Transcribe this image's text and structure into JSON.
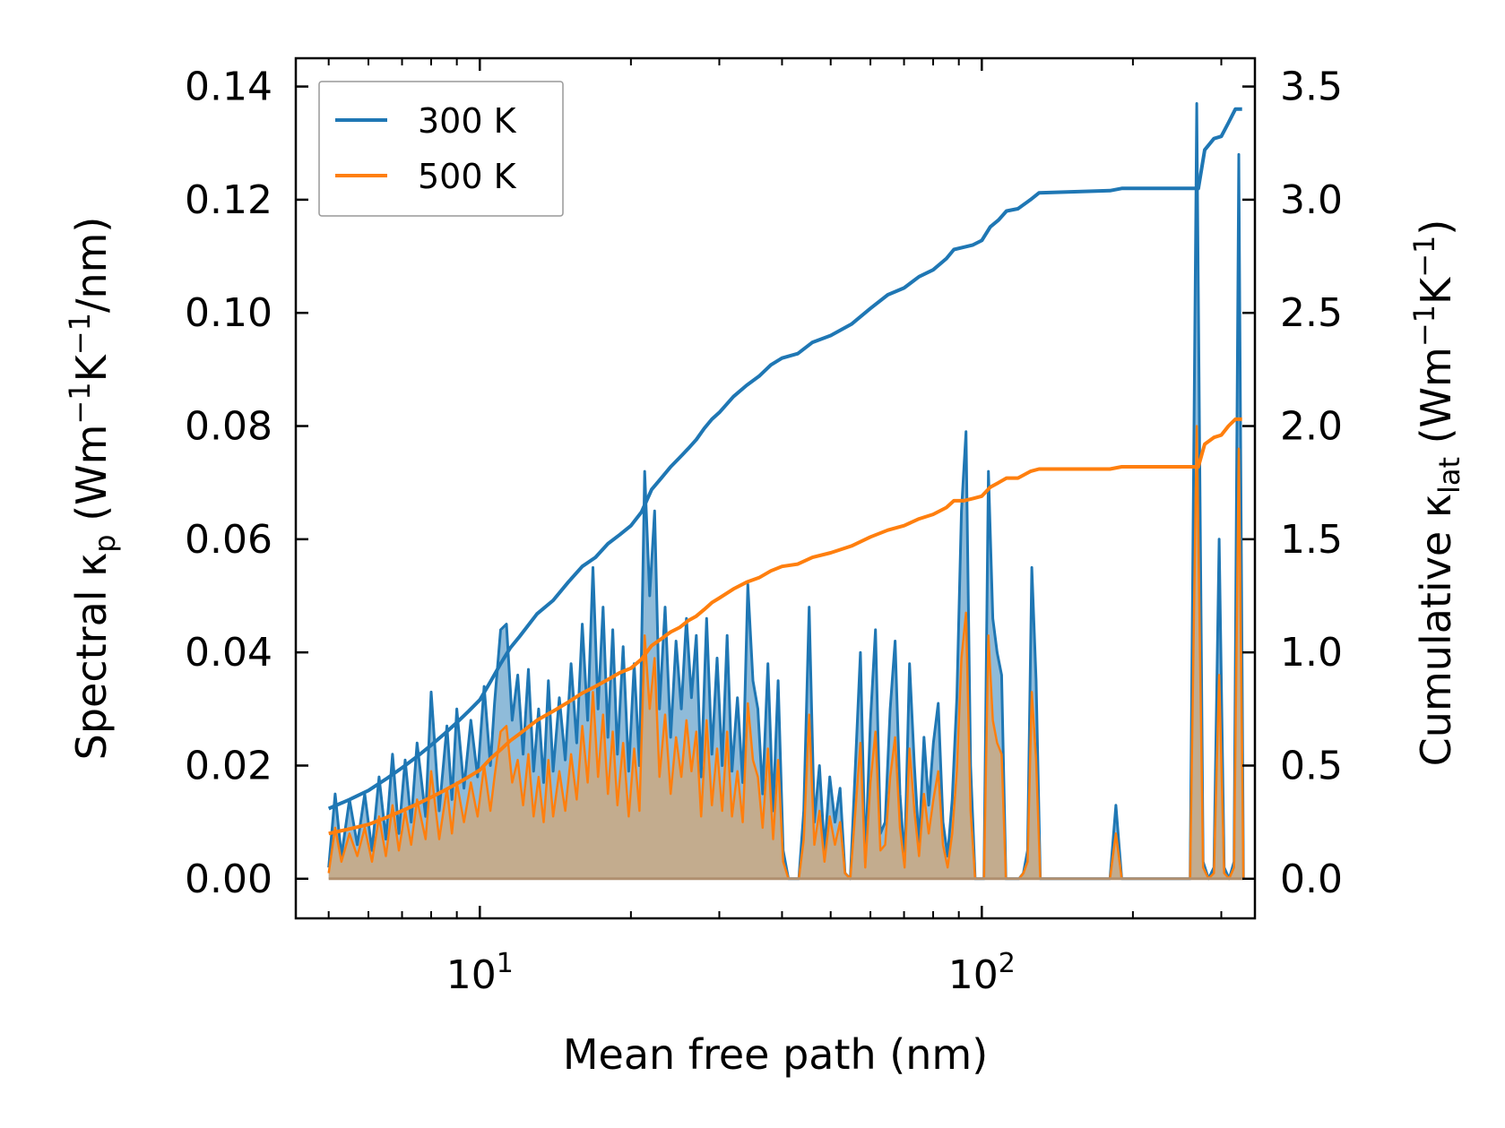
{
  "chart_data": {
    "type": "line",
    "xscale": "log",
    "xlabel": "Mean free path (nm)",
    "ylabel_left": {
      "prefix": "Spectral κ",
      "sub": "p",
      "unit_open": " (Wm",
      "sup1": "−1",
      "mid": "K",
      "sup2": "−1",
      "unit_close": "/nm)"
    },
    "ylabel_right": {
      "prefix": "Cumulative κ",
      "sub": "lat",
      "unit_open": " (Wm",
      "sup1": "−1",
      "mid": "K",
      "sup2": "−1",
      "unit_close": ")"
    },
    "xlim": [
      4.3,
      350
    ],
    "ylim_left": [
      -0.007,
      0.145
    ],
    "ylim_right": [
      -0.175,
      3.625
    ],
    "x_ticks": [
      {
        "base": "10",
        "exp": "1",
        "value": 10
      },
      {
        "base": "10",
        "exp": "2",
        "value": 100
      }
    ],
    "y_ticks_left": [
      "0.00",
      "0.02",
      "0.04",
      "0.06",
      "0.08",
      "0.10",
      "0.12",
      "0.14"
    ],
    "y_ticks_right": [
      "0.0",
      "0.5",
      "1.0",
      "1.5",
      "2.0",
      "2.5",
      "3.0",
      "3.5"
    ],
    "legend": {
      "position": "top-left",
      "entries": [
        {
          "label": "300 K",
          "color": "#1f77b4"
        },
        {
          "label": "500 K",
          "color": "#ff7f0e"
        }
      ]
    },
    "colors": {
      "blue": "#1f77b4",
      "orange": "#ff7f0e",
      "blue_fill": "#1f77b4",
      "orange_fill": "#d9a56e"
    },
    "spectral_300K": {
      "x": [
        5.0,
        5.15,
        5.3,
        5.5,
        5.7,
        5.9,
        6.1,
        6.3,
        6.5,
        6.7,
        6.9,
        7.1,
        7.3,
        7.5,
        7.8,
        8.0,
        8.3,
        8.6,
        8.8,
        9.0,
        9.3,
        9.6,
        9.9,
        10.2,
        10.5,
        10.7,
        11.0,
        11.3,
        11.6,
        11.9,
        12.2,
        12.5,
        12.8,
        13.1,
        13.4,
        13.7,
        14.0,
        14.4,
        14.8,
        15.2,
        15.6,
        16.0,
        16.4,
        16.8,
        17.2,
        17.6,
        18.0,
        18.4,
        18.8,
        19.3,
        19.8,
        20.3,
        20.8,
        21.3,
        21.8,
        22.3,
        22.8,
        23.4,
        24.0,
        24.6,
        25.2,
        25.8,
        26.4,
        27.0,
        27.6,
        28.3,
        29.0,
        29.7,
        30.4,
        31.1,
        31.8,
        32.6,
        33.4,
        34.2,
        35.0,
        35.8,
        36.6,
        37.5,
        38.4,
        39.3,
        40.2,
        41.2,
        42.2,
        43.2,
        44.2,
        45.3,
        46.4,
        47.5,
        48.6,
        49.8,
        51.0,
        52.2,
        53.4,
        54.7,
        56.0,
        57.3,
        58.6,
        60.0,
        61.4,
        62.8,
        64.2,
        65.7,
        67.2,
        68.7,
        70.2,
        71.8,
        73.4,
        75.0,
        76.7,
        78.4,
        80.1,
        81.9,
        83.7,
        85.5,
        87.3,
        89.2,
        91.1,
        93.0,
        95.0,
        97.0,
        99.0,
        101.0,
        103.1,
        105.2,
        107.3,
        109.5,
        111.7,
        114.0,
        116.3,
        118.6,
        121.0,
        123.4,
        125.8,
        128.3,
        130.8,
        133.3,
        140,
        180,
        185,
        190,
        195,
        260,
        268,
        276,
        283,
        290,
        297,
        304,
        311,
        318,
        325,
        332
      ],
      "y": [
        0.002,
        0.015,
        0.004,
        0.014,
        0.006,
        0.015,
        0.005,
        0.018,
        0.007,
        0.022,
        0.008,
        0.021,
        0.01,
        0.024,
        0.011,
        0.033,
        0.012,
        0.027,
        0.014,
        0.03,
        0.016,
        0.028,
        0.018,
        0.034,
        0.02,
        0.031,
        0.044,
        0.045,
        0.028,
        0.036,
        0.022,
        0.037,
        0.019,
        0.03,
        0.017,
        0.035,
        0.019,
        0.032,
        0.021,
        0.038,
        0.024,
        0.045,
        0.028,
        0.055,
        0.03,
        0.048,
        0.025,
        0.044,
        0.022,
        0.041,
        0.019,
        0.038,
        0.02,
        0.072,
        0.05,
        0.065,
        0.03,
        0.048,
        0.025,
        0.042,
        0.03,
        0.046,
        0.032,
        0.043,
        0.018,
        0.046,
        0.022,
        0.039,
        0.02,
        0.043,
        0.019,
        0.032,
        0.017,
        0.052,
        0.035,
        0.03,
        0.015,
        0.038,
        0.012,
        0.035,
        0.005,
        0.0,
        0.0,
        0.0,
        0.012,
        0.048,
        0.01,
        0.02,
        0.005,
        0.018,
        0.01,
        0.016,
        0.001,
        0.0,
        0.02,
        0.04,
        0.003,
        0.028,
        0.044,
        0.008,
        0.01,
        0.03,
        0.042,
        0.015,
        0.003,
        0.038,
        0.02,
        0.006,
        0.025,
        0.013,
        0.024,
        0.031,
        0.01,
        0.004,
        0.014,
        0.032,
        0.065,
        0.079,
        0.02,
        0.0,
        0.0,
        0.0,
        0.072,
        0.046,
        0.04,
        0.036,
        0.0,
        0.0,
        0.0,
        0.0,
        0.001,
        0.005,
        0.055,
        0.035,
        0.0,
        0.0,
        0.0,
        0.0,
        0.013,
        0.0,
        0.0,
        0.0,
        0.137,
        0.003,
        0.0,
        0.002,
        0.06,
        0.002,
        0.0,
        0.003,
        0.128,
        0.0
      ],
      "fill_opacity": 0.5
    },
    "spectral_500K": {
      "x": [
        5.0,
        5.15,
        5.3,
        5.5,
        5.7,
        5.9,
        6.1,
        6.3,
        6.5,
        6.7,
        6.9,
        7.1,
        7.3,
        7.5,
        7.8,
        8.0,
        8.3,
        8.6,
        8.8,
        9.0,
        9.3,
        9.6,
        9.9,
        10.2,
        10.5,
        10.7,
        11.0,
        11.3,
        11.6,
        11.9,
        12.2,
        12.5,
        12.8,
        13.1,
        13.4,
        13.7,
        14.0,
        14.4,
        14.8,
        15.2,
        15.6,
        16.0,
        16.4,
        16.8,
        17.2,
        17.6,
        18.0,
        18.4,
        18.8,
        19.3,
        19.8,
        20.3,
        20.8,
        21.3,
        21.8,
        22.3,
        22.8,
        23.4,
        24.0,
        24.6,
        25.2,
        25.8,
        26.4,
        27.0,
        27.6,
        28.3,
        29.0,
        29.7,
        30.4,
        31.1,
        31.8,
        32.6,
        33.4,
        34.2,
        35.0,
        35.8,
        36.6,
        37.5,
        38.4,
        39.3,
        40.2,
        41.2,
        42.2,
        43.2,
        44.2,
        45.3,
        46.4,
        47.5,
        48.6,
        49.8,
        51.0,
        52.2,
        53.4,
        54.7,
        56.0,
        57.3,
        58.6,
        60.0,
        61.4,
        62.8,
        64.2,
        65.7,
        67.2,
        68.7,
        70.2,
        71.8,
        73.4,
        75.0,
        76.7,
        78.4,
        80.1,
        81.9,
        83.7,
        85.5,
        87.3,
        89.2,
        91.1,
        93.0,
        95.0,
        97.0,
        99.0,
        101.0,
        103.1,
        105.2,
        107.3,
        109.5,
        111.7,
        114.0,
        116.3,
        118.6,
        121.0,
        123.4,
        125.8,
        128.3,
        130.8,
        133.3,
        140,
        180,
        185,
        190,
        195,
        260,
        268,
        276,
        283,
        290,
        297,
        304,
        311,
        318,
        325,
        332
      ],
      "y": [
        0.001,
        0.009,
        0.003,
        0.008,
        0.004,
        0.009,
        0.003,
        0.011,
        0.004,
        0.013,
        0.005,
        0.012,
        0.006,
        0.014,
        0.007,
        0.019,
        0.007,
        0.016,
        0.008,
        0.017,
        0.01,
        0.017,
        0.011,
        0.02,
        0.012,
        0.018,
        0.026,
        0.027,
        0.017,
        0.021,
        0.013,
        0.022,
        0.011,
        0.018,
        0.01,
        0.021,
        0.011,
        0.019,
        0.012,
        0.022,
        0.014,
        0.027,
        0.017,
        0.033,
        0.018,
        0.029,
        0.015,
        0.026,
        0.013,
        0.024,
        0.011,
        0.023,
        0.012,
        0.043,
        0.03,
        0.039,
        0.018,
        0.029,
        0.015,
        0.025,
        0.018,
        0.028,
        0.019,
        0.026,
        0.011,
        0.028,
        0.013,
        0.023,
        0.012,
        0.026,
        0.011,
        0.019,
        0.01,
        0.031,
        0.021,
        0.018,
        0.009,
        0.023,
        0.007,
        0.021,
        0.003,
        0.0,
        0.0,
        0.0,
        0.007,
        0.029,
        0.006,
        0.012,
        0.003,
        0.011,
        0.006,
        0.01,
        0.001,
        0.0,
        0.012,
        0.024,
        0.002,
        0.017,
        0.026,
        0.005,
        0.006,
        0.018,
        0.025,
        0.009,
        0.002,
        0.023,
        0.012,
        0.004,
        0.015,
        0.008,
        0.014,
        0.019,
        0.006,
        0.002,
        0.008,
        0.019,
        0.039,
        0.047,
        0.012,
        0.0,
        0.0,
        0.0,
        0.043,
        0.028,
        0.024,
        0.022,
        0.0,
        0.0,
        0.0,
        0.0,
        0.001,
        0.003,
        0.033,
        0.021,
        0.0,
        0.0,
        0.0,
        0.0,
        0.008,
        0.0,
        0.0,
        0.0,
        0.08,
        0.002,
        0.0,
        0.001,
        0.036,
        0.001,
        0.0,
        0.002,
        0.076,
        0.0
      ],
      "fill_opacity": 0.7
    },
    "cumulative_300K": {
      "x": [
        5.0,
        5.5,
        6.0,
        6.5,
        7.0,
        7.5,
        8.0,
        8.5,
        9.0,
        9.5,
        10.0,
        10.5,
        11.0,
        11.5,
        12.0,
        13.0,
        14.0,
        15.0,
        16.0,
        17.0,
        18.0,
        19.0,
        20.0,
        21.0,
        22.0,
        23.0,
        24.0,
        25.0,
        26.0,
        27.0,
        28.0,
        29.0,
        30.0,
        32.0,
        34.0,
        36.0,
        38.0,
        40.0,
        43.0,
        46.0,
        50.0,
        55.0,
        60.0,
        65.0,
        70.0,
        75.0,
        80.0,
        85.0,
        88.0,
        92.0,
        96.0,
        100.0,
        104.0,
        108.0,
        112.0,
        118.0,
        125.0,
        130.0,
        180.0,
        190.0,
        270.0,
        278.0,
        290.0,
        300.0,
        310.0,
        320.0,
        330.0
      ],
      "y": [
        0.31,
        0.35,
        0.39,
        0.44,
        0.49,
        0.54,
        0.59,
        0.64,
        0.69,
        0.74,
        0.79,
        0.87,
        0.95,
        1.02,
        1.07,
        1.17,
        1.23,
        1.31,
        1.38,
        1.42,
        1.48,
        1.52,
        1.56,
        1.62,
        1.72,
        1.77,
        1.82,
        1.86,
        1.9,
        1.94,
        1.99,
        2.03,
        2.06,
        2.13,
        2.18,
        2.22,
        2.27,
        2.3,
        2.32,
        2.37,
        2.4,
        2.45,
        2.52,
        2.58,
        2.61,
        2.66,
        2.69,
        2.74,
        2.78,
        2.79,
        2.8,
        2.82,
        2.88,
        2.91,
        2.95,
        2.96,
        3.0,
        3.03,
        3.04,
        3.05,
        3.05,
        3.22,
        3.27,
        3.28,
        3.34,
        3.4,
        3.4
      ],
      "linewidth": 4
    },
    "cumulative_500K": {
      "x": [
        5.0,
        5.5,
        6.0,
        6.5,
        7.0,
        7.5,
        8.0,
        8.5,
        9.0,
        9.5,
        10.0,
        10.5,
        11.0,
        11.5,
        12.0,
        13.0,
        14.0,
        15.0,
        16.0,
        17.0,
        18.0,
        19.0,
        20.0,
        21.0,
        22.0,
        23.0,
        24.0,
        25.0,
        26.0,
        27.0,
        28.0,
        29.0,
        30.0,
        32.0,
        34.0,
        36.0,
        38.0,
        40.0,
        43.0,
        46.0,
        50.0,
        55.0,
        60.0,
        65.0,
        70.0,
        75.0,
        80.0,
        85.0,
        88.0,
        92.0,
        96.0,
        100.0,
        104.0,
        108.0,
        112.0,
        118.0,
        125.0,
        130.0,
        180.0,
        190.0,
        270.0,
        278.0,
        290.0,
        300.0,
        310.0,
        320.0,
        330.0
      ],
      "y": [
        0.2,
        0.22,
        0.24,
        0.27,
        0.3,
        0.33,
        0.36,
        0.39,
        0.42,
        0.45,
        0.48,
        0.53,
        0.57,
        0.61,
        0.64,
        0.7,
        0.74,
        0.78,
        0.82,
        0.85,
        0.88,
        0.91,
        0.93,
        0.97,
        1.03,
        1.06,
        1.09,
        1.11,
        1.14,
        1.16,
        1.19,
        1.22,
        1.24,
        1.28,
        1.31,
        1.33,
        1.36,
        1.38,
        1.39,
        1.42,
        1.44,
        1.47,
        1.51,
        1.54,
        1.56,
        1.59,
        1.61,
        1.64,
        1.67,
        1.67,
        1.68,
        1.69,
        1.73,
        1.75,
        1.77,
        1.77,
        1.8,
        1.81,
        1.81,
        1.82,
        1.82,
        1.92,
        1.95,
        1.96,
        2.0,
        2.03,
        2.03
      ],
      "linewidth": 4
    }
  }
}
